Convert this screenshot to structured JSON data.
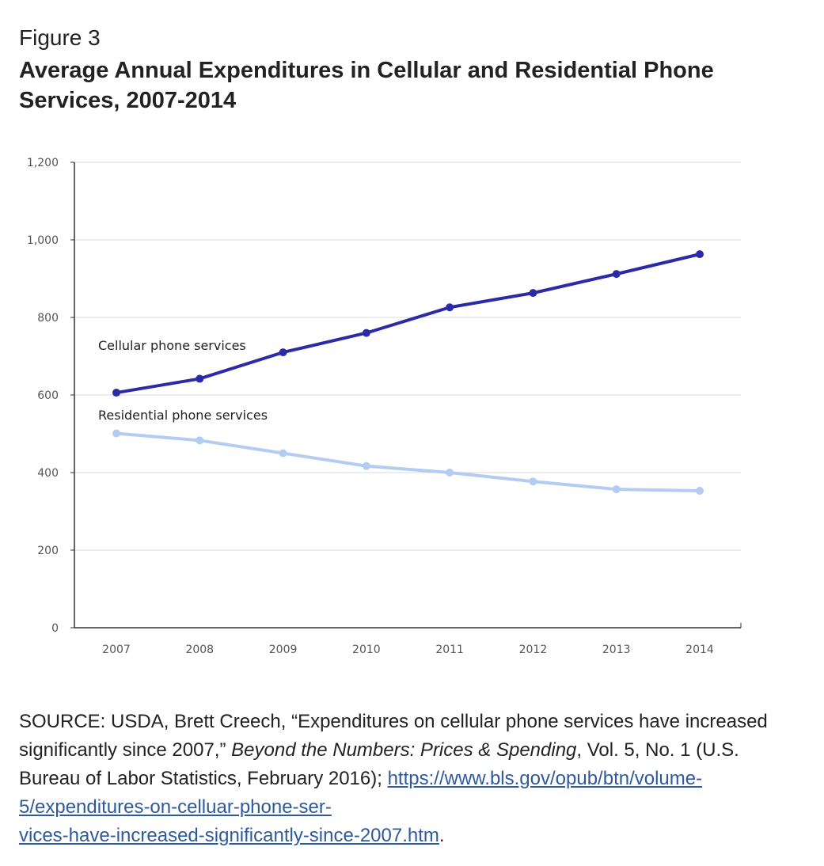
{
  "figure": {
    "label": "Figure 3",
    "title": "Average Annual Expenditures in Cellular and Residential Phone Services, 2007-2014"
  },
  "chart_data": {
    "type": "line",
    "title": "",
    "xlabel": "",
    "ylabel": "",
    "x": [
      "2007",
      "2008",
      "2009",
      "2010",
      "2011",
      "2012",
      "2013",
      "2014"
    ],
    "ylim": [
      0,
      1200
    ],
    "yticks": [
      "0",
      "200",
      "400",
      "600",
      "800",
      "1,000",
      "1,200"
    ],
    "grid": true,
    "series": [
      {
        "name": "Cellular phone services",
        "color": "#2b2ba8",
        "values": [
          606,
          642,
          710,
          760,
          826,
          863,
          912,
          963
        ]
      },
      {
        "name": "Residential phone services",
        "color": "#b3ccf2",
        "values": [
          501,
          483,
          450,
          417,
          400,
          377,
          357,
          353
        ]
      }
    ]
  },
  "source": {
    "prefix": "SOURCE: USDA, Brett Creech, “Expenditures on cellular phone services have increased significantly since 2007,” ",
    "publication": "Beyond the Numbers: Prices & Spending",
    "details": ", Vol. 5, No. 1 (U.S. Bureau of Labor Statistics, February 2016); ",
    "url_line1": "https://www.bls.gov/opub/btn/volume-5/expenditures-on-celluar-phone-ser-",
    "url_line2": "vices-have-increased-significantly-since-2007.htm",
    "suffix": "."
  }
}
